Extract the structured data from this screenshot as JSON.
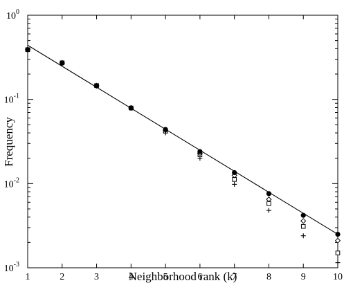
{
  "chart_data": {
    "type": "scatter",
    "title": "",
    "xlabel": "Neighborhood  rank (k)",
    "ylabel": "Frequency",
    "x_ticks": [
      1,
      2,
      3,
      4,
      5,
      6,
      7,
      8,
      9,
      10
    ],
    "y_scale": "log",
    "y_ticks": [
      {
        "value": 1,
        "base": "10",
        "exp": "0"
      },
      {
        "value": 0.1,
        "base": "10",
        "exp": "-1"
      },
      {
        "value": 0.01,
        "base": "10",
        "exp": "-2"
      },
      {
        "value": 0.001,
        "base": "10",
        "exp": "-3"
      }
    ],
    "xlim": [
      1,
      10
    ],
    "ylim": [
      0.001,
      1
    ],
    "grid": false,
    "legend": "none",
    "fit_line": {
      "x": [
        1,
        10
      ],
      "y": [
        0.44,
        0.0025
      ]
    },
    "series": [
      {
        "marker": "filled-circle",
        "x": [
          1,
          2,
          3,
          4,
          5,
          6,
          7,
          8,
          9,
          10
        ],
        "y": [
          0.39,
          0.27,
          0.145,
          0.079,
          0.044,
          0.024,
          0.0135,
          0.0076,
          0.0042,
          0.0025
        ]
      },
      {
        "marker": "diamond",
        "x": [
          1,
          2,
          3,
          4,
          5,
          6,
          7,
          8,
          9,
          10
        ],
        "y": [
          0.39,
          0.27,
          0.145,
          0.079,
          0.043,
          0.023,
          0.0125,
          0.0065,
          0.0036,
          0.0021
        ]
      },
      {
        "marker": "square",
        "x": [
          1,
          2,
          3,
          4,
          5,
          6,
          7,
          8,
          9,
          10
        ],
        "y": [
          0.39,
          0.272,
          0.146,
          0.079,
          0.042,
          0.022,
          0.0112,
          0.0058,
          0.0031,
          0.0015
        ]
      },
      {
        "marker": "plus",
        "x": [
          1,
          2,
          3,
          4,
          5,
          6,
          7,
          8,
          9,
          10
        ],
        "y": [
          0.39,
          0.275,
          0.147,
          0.08,
          0.04,
          0.02,
          0.0098,
          0.0048,
          0.0024,
          0.00115
        ]
      }
    ]
  }
}
